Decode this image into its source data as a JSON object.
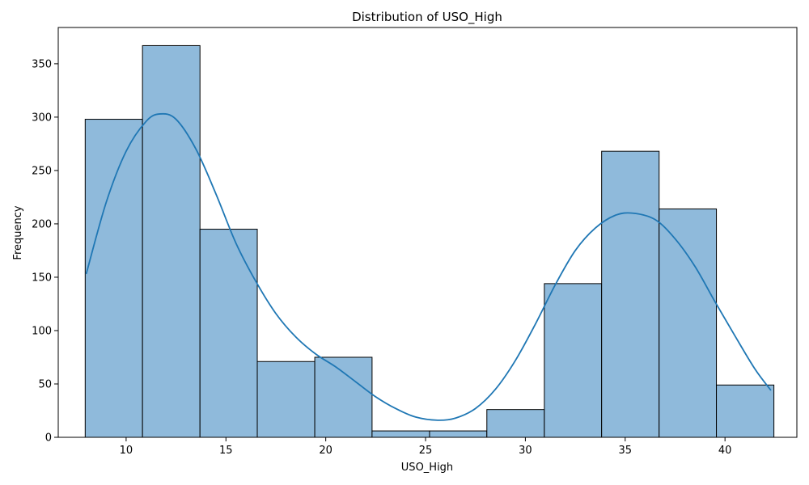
{
  "chart_data": {
    "type": "bar",
    "subtype": "histogram-with-kde",
    "title": "Distribution of USO_High",
    "xlabel": "USO_High",
    "ylabel": "Frequency",
    "xlim": [
      6.6,
      43.6
    ],
    "ylim": [
      0,
      384
    ],
    "grid": false,
    "legend": "none",
    "bin_edges": [
      7.95,
      10.82,
      13.7,
      16.57,
      19.45,
      22.32,
      25.2,
      28.07,
      30.95,
      33.82,
      36.7,
      39.57,
      42.45
    ],
    "values": [
      298,
      367,
      195,
      71,
      75,
      6,
      6,
      26,
      144,
      268,
      214,
      49
    ],
    "x_ticks": [
      10,
      15,
      20,
      25,
      30,
      35,
      40
    ],
    "y_ticks": [
      0,
      50,
      100,
      150,
      200,
      250,
      300,
      350
    ],
    "kde_points": [
      [
        8.0,
        153
      ],
      [
        9.0,
        220
      ],
      [
        10.0,
        268
      ],
      [
        11.0,
        296
      ],
      [
        11.7,
        303
      ],
      [
        12.5,
        298
      ],
      [
        13.5,
        270
      ],
      [
        14.5,
        228
      ],
      [
        15.5,
        182
      ],
      [
        16.5,
        146
      ],
      [
        17.5,
        116
      ],
      [
        18.5,
        94
      ],
      [
        19.5,
        78
      ],
      [
        20.5,
        66
      ],
      [
        21.5,
        52
      ],
      [
        22.5,
        38
      ],
      [
        23.5,
        27
      ],
      [
        24.5,
        19
      ],
      [
        25.6,
        16
      ],
      [
        26.5,
        18
      ],
      [
        27.5,
        27
      ],
      [
        28.5,
        45
      ],
      [
        29.5,
        72
      ],
      [
        30.5,
        106
      ],
      [
        31.5,
        143
      ],
      [
        32.5,
        175
      ],
      [
        33.5,
        196
      ],
      [
        34.5,
        208
      ],
      [
        35.4,
        210
      ],
      [
        36.5,
        204
      ],
      [
        37.5,
        186
      ],
      [
        38.5,
        160
      ],
      [
        39.5,
        127
      ],
      [
        40.5,
        95
      ],
      [
        41.5,
        64
      ],
      [
        42.3,
        44
      ]
    ],
    "colors": {
      "bar_fill": "#8fbadb",
      "bar_edge": "#000000",
      "kde_line": "#1f77b4"
    }
  }
}
